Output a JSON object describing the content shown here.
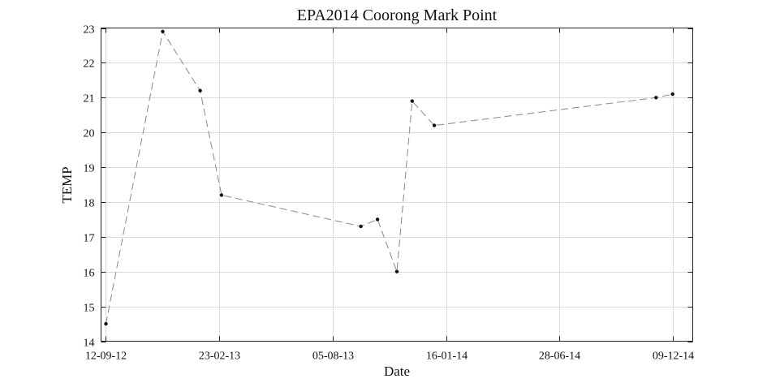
{
  "chart_data": {
    "type": "line",
    "title": "EPA2014 Coorong Mark Point",
    "xlabel": "Date",
    "ylabel": "TEMP",
    "x_ticks": [
      {
        "date": "2012-09-12",
        "label": "12-09-12"
      },
      {
        "date": "2013-02-23",
        "label": "23-02-13"
      },
      {
        "date": "2013-08-05",
        "label": "05-08-13"
      },
      {
        "date": "2014-01-16",
        "label": "16-01-14"
      },
      {
        "date": "2014-06-28",
        "label": "28-06-14"
      },
      {
        "date": "2014-12-09",
        "label": "09-12-14"
      }
    ],
    "xlim": [
      "2012-09-05",
      "2015-01-07"
    ],
    "ylim": [
      14,
      23
    ],
    "y_ticks": [
      14,
      15,
      16,
      17,
      18,
      19,
      20,
      21,
      22,
      23
    ],
    "grid": true,
    "series": [
      {
        "color": "#888888",
        "marker_color": "#111111",
        "points": [
          {
            "x": "2012-09-12",
            "y": 14.5
          },
          {
            "x": "2012-12-03",
            "y": 22.9
          },
          {
            "x": "2013-01-26",
            "y": 21.2
          },
          {
            "x": "2013-02-26",
            "y": 18.2
          },
          {
            "x": "2013-09-15",
            "y": 17.3
          },
          {
            "x": "2013-10-09",
            "y": 17.5
          },
          {
            "x": "2013-11-06",
            "y": 16.0
          },
          {
            "x": "2013-11-28",
            "y": 20.9
          },
          {
            "x": "2013-12-30",
            "y": 20.2
          },
          {
            "x": "2014-11-15",
            "y": 21.0
          },
          {
            "x": "2014-12-09",
            "y": 21.1
          }
        ]
      }
    ]
  }
}
